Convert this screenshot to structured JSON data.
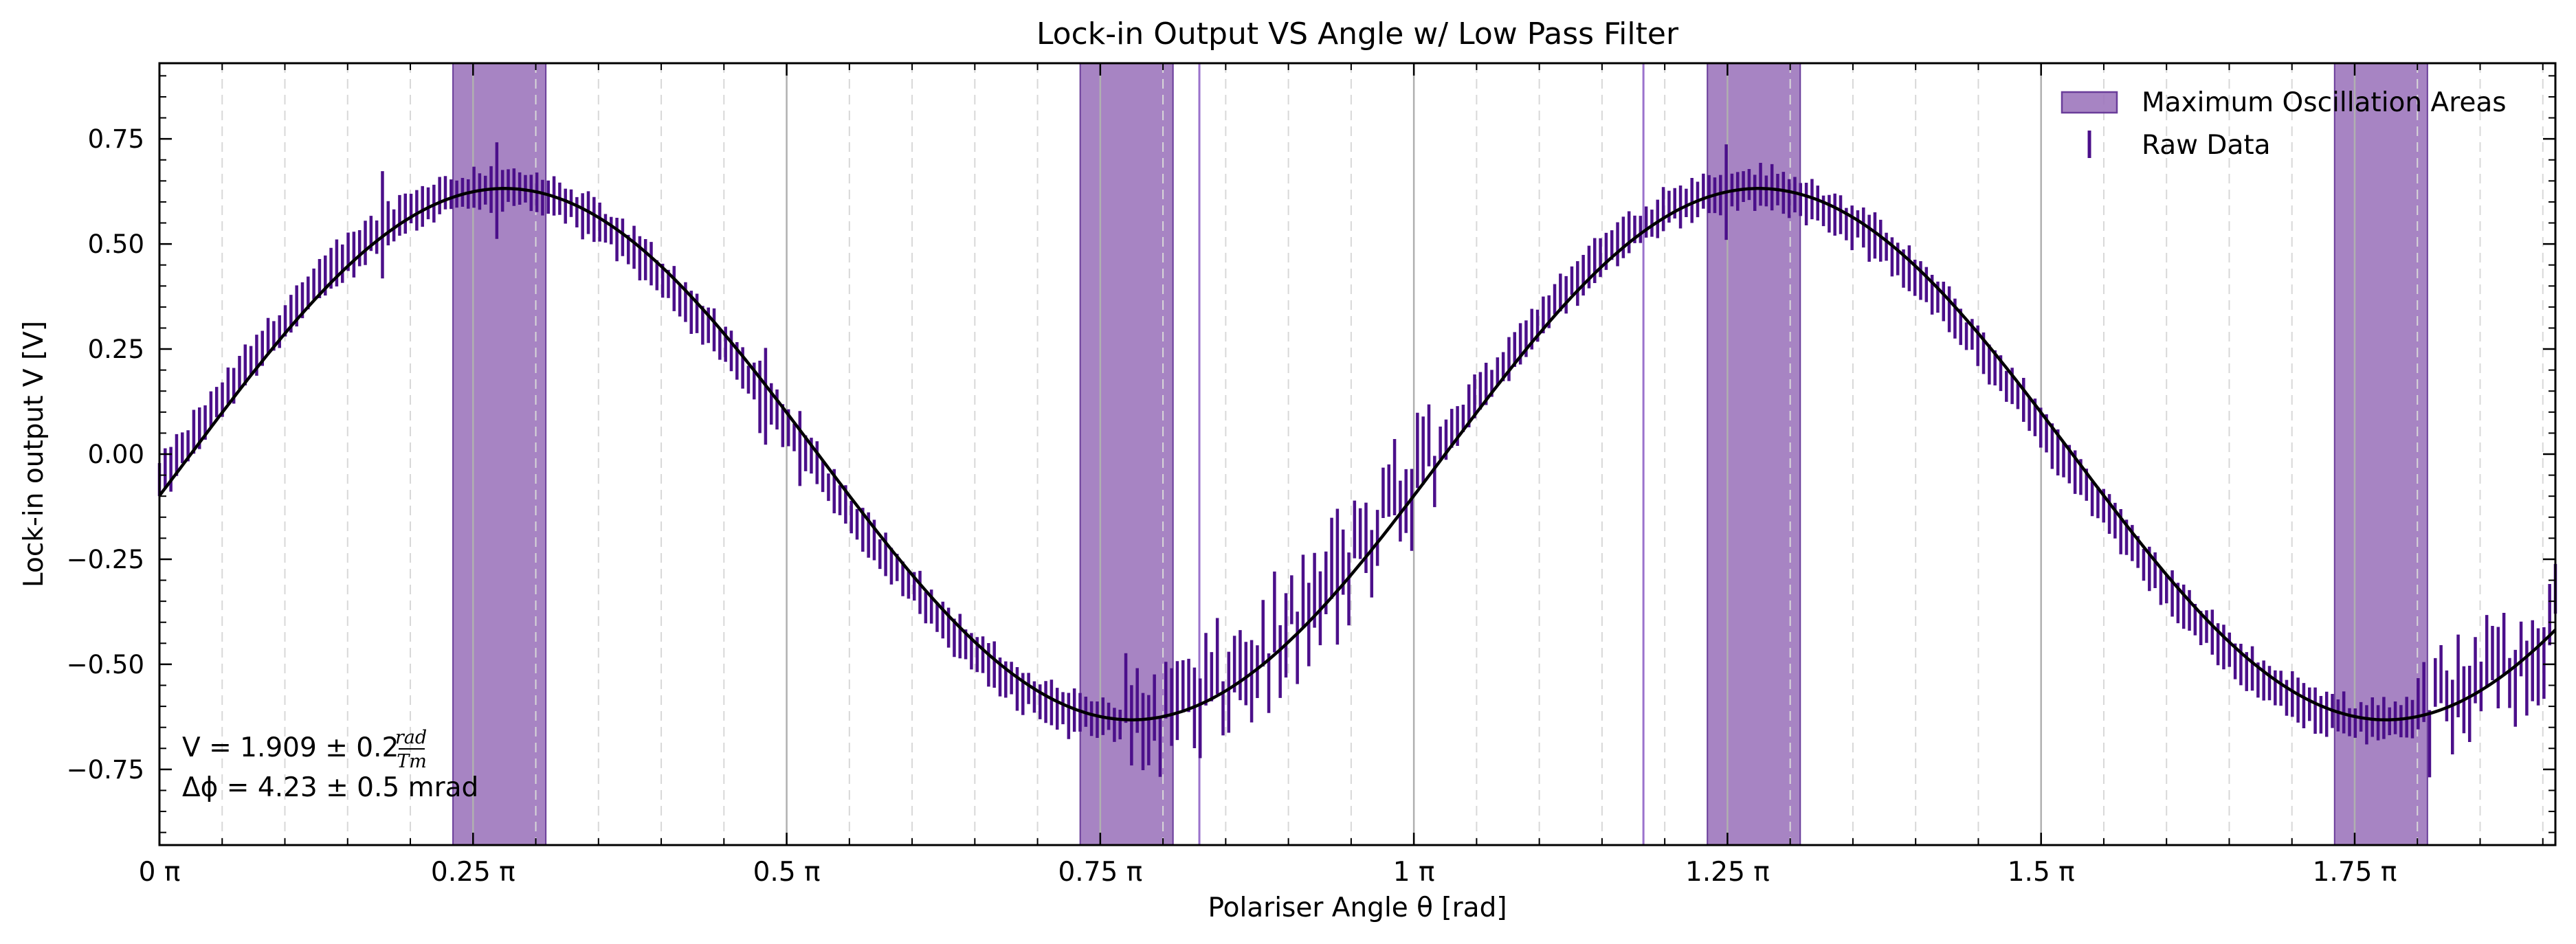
{
  "chart_data": {
    "type": "scatter",
    "title": "Lock-in Output VS Angle w/ Low Pass Filter",
    "xlabel": "Polariser Angle θ [rad]",
    "ylabel": "Lock-in output V [V]",
    "xlim_pi": [
      0,
      1.91
    ],
    "ylim": [
      -0.93,
      0.93
    ],
    "x_ticks": [
      {
        "value_pi": 0,
        "label": "0 π"
      },
      {
        "value_pi": 0.25,
        "label": "0.25 π"
      },
      {
        "value_pi": 0.5,
        "label": "0.5 π"
      },
      {
        "value_pi": 0.75,
        "label": "0.75 π"
      },
      {
        "value_pi": 1.0,
        "label": "1 π"
      },
      {
        "value_pi": 1.25,
        "label": "1.25 π"
      },
      {
        "value_pi": 1.5,
        "label": "1.5 π"
      },
      {
        "value_pi": 1.75,
        "label": "1.75 π"
      }
    ],
    "y_ticks": [
      0.75,
      0.5,
      0.25,
      0.0,
      -0.25,
      -0.5,
      -0.75
    ],
    "y_tick_labels": [
      "0.75",
      "0.50",
      "0.25",
      "0.00",
      "−0.25",
      "−0.50",
      "−0.75"
    ],
    "grid": "vertical, solid at major ticks and dashed at minor ticks",
    "legend_position": "top-right",
    "legend": {
      "shaded": "Maximum Oscillation Areas",
      "raw": "Raw Data"
    },
    "shaded_regions_pi": [
      [
        0.234,
        0.308
      ],
      [
        0.734,
        0.808
      ],
      [
        1.234,
        1.308
      ],
      [
        1.734,
        1.808
      ]
    ],
    "vertical_markers_pi": [
      0.829,
      1.183
    ],
    "fit": {
      "amplitude": 0.632,
      "phase_peak_pi": 0.275,
      "offset": 0.0
    },
    "raw_data": {
      "x_start_pi": 0.0,
      "x_end_pi": 1.91,
      "n_points": 420,
      "offset_from_fit": -0.035,
      "typical_error": 0.04
    },
    "annotations": {
      "line1_parts": [
        "V = 1.909 ± 0.2 ",
        "rad",
        "Tm"
      ],
      "line2": "Δϕ = 4.23 ± 0.5 mrad"
    },
    "colors": {
      "shade": "#9d77bd",
      "shade_edge": "#6a3d9a",
      "data": "#4b0f8a",
      "fit": "#000000",
      "marker_line": "#9a72cc"
    }
  }
}
